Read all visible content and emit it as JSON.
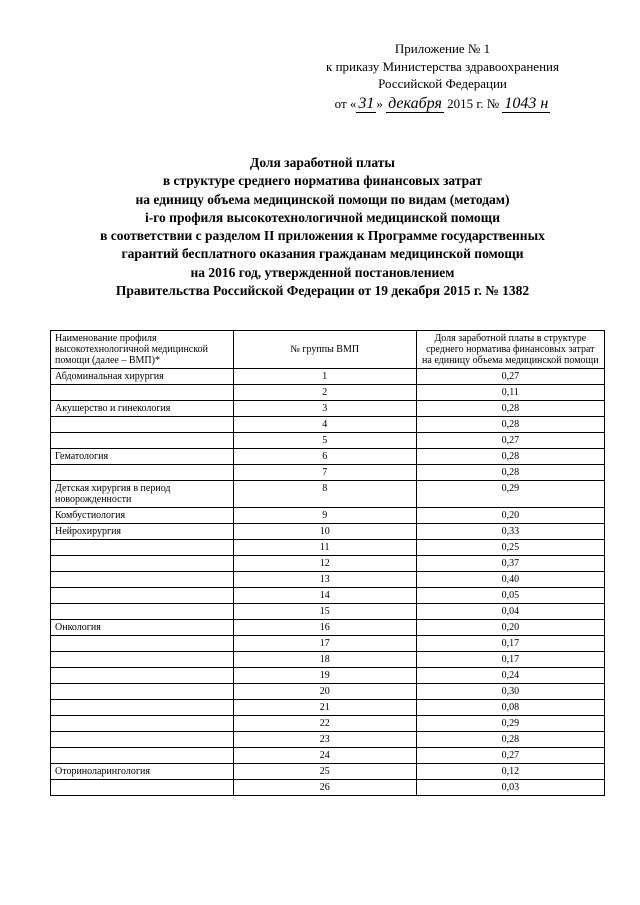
{
  "header": {
    "line1": "Приложение № 1",
    "line2": "к приказу Министерства здравоохранения",
    "line3": "Российской Федерации",
    "date_prefix": "от «",
    "date_day": "31",
    "date_mid": "» ",
    "date_month": "декабря",
    "date_year": " 2015 г. № ",
    "date_number": "1043 н"
  },
  "title": {
    "l1": "Доля заработной платы",
    "l2": "в структуре среднего норматива финансовых затрат",
    "l3": "на единицу объема медицинской помощи по видам (методам)",
    "l4": "i-го профиля высокотехнологичной медицинской помощи",
    "l5": "в соответствии с разделом II приложения к Программе государственных",
    "l6": "гарантий бесплатного оказания гражданам медицинской помощи",
    "l7": "на 2016 год, утвержденной постановлением",
    "l8": "Правительства Российской Федерации от 19 декабря 2015 г. № 1382"
  },
  "table": {
    "columns": [
      "Наименование профиля высокотехнологичной медицинской помощи (далее – ВМП)*",
      "№ группы ВМП",
      "Доля заработной платы в структуре среднего норматива финансовых затрат на единицу объема медицинской помощи"
    ],
    "rows": [
      {
        "name": "Абдоминальная хирургия",
        "group": "1",
        "share": "0,27"
      },
      {
        "name": "",
        "group": "2",
        "share": "0,11"
      },
      {
        "name": "Акушерство и гинекология",
        "group": "3",
        "share": "0,28"
      },
      {
        "name": "",
        "group": "4",
        "share": "0,28"
      },
      {
        "name": "",
        "group": "5",
        "share": "0,27"
      },
      {
        "name": "Гематология",
        "group": "6",
        "share": "0,28"
      },
      {
        "name": "",
        "group": "7",
        "share": "0,28"
      },
      {
        "name": "Детская хирургия в период новорожденности",
        "group": "8",
        "share": "0,29"
      },
      {
        "name": "Комбустиология",
        "group": "9",
        "share": "0,20"
      },
      {
        "name": "Нейрохирургия",
        "group": "10",
        "share": "0,33"
      },
      {
        "name": "",
        "group": "11",
        "share": "0,25"
      },
      {
        "name": "",
        "group": "12",
        "share": "0,37"
      },
      {
        "name": "",
        "group": "13",
        "share": "0,40"
      },
      {
        "name": "",
        "group": "14",
        "share": "0,05"
      },
      {
        "name": "",
        "group": "15",
        "share": "0,04"
      },
      {
        "name": "Онкология",
        "group": "16",
        "share": "0,20"
      },
      {
        "name": "",
        "group": "17",
        "share": "0,17"
      },
      {
        "name": "",
        "group": "18",
        "share": "0,17"
      },
      {
        "name": "",
        "group": "19",
        "share": "0,24"
      },
      {
        "name": "",
        "group": "20",
        "share": "0,30"
      },
      {
        "name": "",
        "group": "21",
        "share": "0,08"
      },
      {
        "name": "",
        "group": "22",
        "share": "0,29"
      },
      {
        "name": "",
        "group": "23",
        "share": "0,28"
      },
      {
        "name": "",
        "group": "24",
        "share": "0,27"
      },
      {
        "name": "Оториноларингология",
        "group": "25",
        "share": "0,12"
      },
      {
        "name": "",
        "group": "26",
        "share": "0,03"
      }
    ]
  }
}
